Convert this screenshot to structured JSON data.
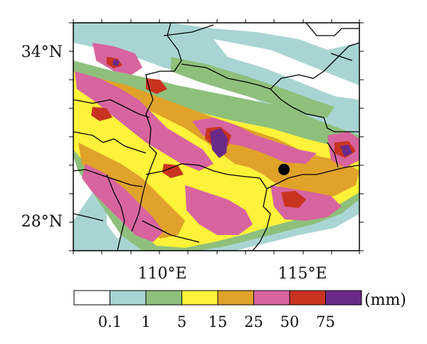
{
  "map": {
    "lat_labels": [
      "34°N",
      "28°N"
    ],
    "lon_labels": [
      "110°E",
      "115°E"
    ]
  },
  "legend": {
    "unit": "(mm)",
    "thresholds": [
      "0.1",
      "1",
      "5",
      "15",
      "25",
      "50",
      "75"
    ],
    "colors": [
      "#ffffff",
      "#a8d5d3",
      "#8ec07c",
      "#fff23a",
      "#e0a229",
      "#d7649f",
      "#c83320",
      "#6b2a8a"
    ]
  },
  "marker": {
    "name": "black-dot",
    "color": "#000000"
  }
}
